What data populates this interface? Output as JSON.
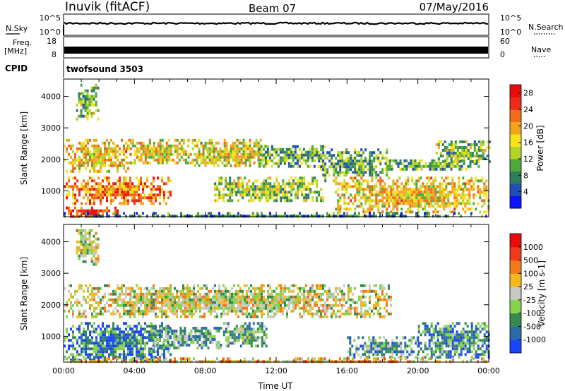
{
  "header": {
    "station": "Inuvik (fitACF)",
    "beam": "Beam 07",
    "date": "07/May/2016"
  },
  "panels": {
    "nsky_label": "N.Sky",
    "nsky_ticks": [
      "10^5",
      "10^0"
    ],
    "nsearch_label": "N.Search",
    "nsearch_ticks": [
      "10^5",
      "10^0"
    ],
    "freq_label_1": "Freq.",
    "freq_label_2": "[MHz]",
    "freq_ticks": [
      "18",
      "8"
    ],
    "nave_label": "Nave",
    "nave_ticks": [
      "60",
      "0"
    ],
    "cpid_label": "CPID",
    "cpid_value": "twofsound 3503"
  },
  "chart_data": [
    {
      "type": "heatmap",
      "name": "power",
      "ylabel": "Slant Range [km]",
      "yticks": [
        1000,
        2000,
        3000,
        4000
      ],
      "ylim": [
        180,
        4550
      ],
      "xlim": [
        0,
        24
      ],
      "xticks": [
        "00:00",
        "04:00",
        "08:00",
        "12:00",
        "16:00",
        "20:00",
        "00:00"
      ],
      "colorbar": {
        "label": "Power [dB]",
        "ticks": [
          "4",
          "8",
          "12",
          "16",
          "20",
          "24",
          "28"
        ],
        "colors": [
          "#0a16ff",
          "#1f4fb5",
          "#2f7d5a",
          "#4fa83a",
          "#b4d42a",
          "#f5e21a",
          "#f7a21c",
          "#f36a1a",
          "#ee2a1a",
          "#e80c0c"
        ]
      },
      "regions": [
        {
          "t": [
            0.0,
            3.0
          ],
          "r": [
            200,
            500
          ],
          "level": 0.9
        },
        {
          "t": [
            0.0,
            6.0
          ],
          "r": [
            600,
            1450
          ],
          "level": 0.72
        },
        {
          "t": [
            0.0,
            3.8
          ],
          "r": [
            1650,
            2650
          ],
          "level": 0.58
        },
        {
          "t": [
            3.5,
            7.0
          ],
          "r": [
            1850,
            2650
          ],
          "level": 0.55
        },
        {
          "t": [
            0.7,
            2.0
          ],
          "r": [
            3300,
            4400
          ],
          "level": 0.4
        },
        {
          "t": [
            7.0,
            11.5
          ],
          "r": [
            1800,
            2650
          ],
          "level": 0.52
        },
        {
          "t": [
            11.0,
            14.8
          ],
          "r": [
            1800,
            2450
          ],
          "level": 0.35
        },
        {
          "t": [
            14.0,
            18.3
          ],
          "r": [
            1500,
            2350
          ],
          "level": 0.33
        },
        {
          "t": [
            8.5,
            14.8
          ],
          "r": [
            700,
            1450
          ],
          "level": 0.42
        },
        {
          "t": [
            15.2,
            24.0
          ],
          "r": [
            350,
            1450
          ],
          "level": 0.58
        },
        {
          "t": [
            18.0,
            23.5
          ],
          "r": [
            1700,
            2000
          ],
          "level": 0.35
        },
        {
          "t": [
            21.0,
            24.0
          ],
          "r": [
            1900,
            2600
          ],
          "level": 0.4
        },
        {
          "t": [
            0.0,
            24.0
          ],
          "r": [
            190,
            330
          ],
          "level": 0.25
        }
      ]
    },
    {
      "type": "heatmap",
      "name": "velocity",
      "ylabel": "Slant Range [km]",
      "yticks": [
        1000,
        2000,
        3000,
        4000
      ],
      "ylim": [
        180,
        4550
      ],
      "xlim": [
        0,
        24
      ],
      "xticks": [
        "00:00",
        "04:00",
        "08:00",
        "12:00",
        "16:00",
        "20:00",
        "00:00"
      ],
      "xlabel": "Time UT",
      "colorbar": {
        "label": "Velocity [m s-1]",
        "ticks": [
          "1000",
          "500",
          "100",
          "25",
          "-25",
          "-100",
          "-500",
          "-1000"
        ],
        "colors": [
          "#1b44ff",
          "#2a6aa8",
          "#358a52",
          "#86d24c",
          "#c8c8c4",
          "#f5b81c",
          "#f37a1a",
          "#ee3a1a",
          "#e60c0c"
        ]
      },
      "regions": [
        {
          "t": [
            0.0,
            6.0
          ],
          "r": [
            200,
            1450
          ],
          "level": 0.22
        },
        {
          "t": [
            5.0,
            9.0
          ],
          "r": [
            600,
            1300
          ],
          "level": 0.32
        },
        {
          "t": [
            9.0,
            11.5
          ],
          "r": [
            700,
            1450
          ],
          "level": 0.34
        },
        {
          "t": [
            0.0,
            18.5
          ],
          "r": [
            1650,
            2650
          ],
          "level": 0.5
        },
        {
          "t": [
            0.7,
            2.0
          ],
          "r": [
            3300,
            4400
          ],
          "level": 0.48
        },
        {
          "t": [
            16.0,
            20.0
          ],
          "r": [
            350,
            1000
          ],
          "level": 0.3
        },
        {
          "t": [
            20.0,
            24.0
          ],
          "r": [
            350,
            1450
          ],
          "level": 0.25
        },
        {
          "t": [
            0.0,
            24.0
          ],
          "r": [
            190,
            330
          ],
          "level": 0.6
        }
      ]
    }
  ]
}
